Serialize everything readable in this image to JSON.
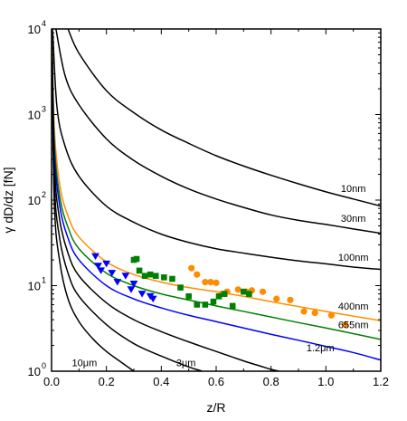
{
  "chart_data": {
    "type": "scatter",
    "xlabel": "z/R",
    "ylabel": "γ dD/dz [fN]",
    "xlim": [
      0,
      1.2
    ],
    "ylim": [
      1,
      10000
    ],
    "yscale": "log",
    "x_ticks": [
      "0.0",
      "0.2",
      "0.4",
      "0.6",
      "0.8",
      "1.0",
      "1.2"
    ],
    "y_ticks": [
      {
        "base": "10",
        "exp": "0"
      },
      {
        "base": "10",
        "exp": "1"
      },
      {
        "base": "10",
        "exp": "2"
      },
      {
        "base": "10",
        "exp": "3"
      },
      {
        "base": "10",
        "exp": "4"
      }
    ],
    "grid": false,
    "curves": [
      {
        "label": "10nm",
        "color": "#000000",
        "points": [
          [
            0.06,
            10000
          ],
          [
            0.1,
            5200
          ],
          [
            0.2,
            1900
          ],
          [
            0.3,
            1050
          ],
          [
            0.4,
            660
          ],
          [
            0.5,
            460
          ],
          [
            0.6,
            330
          ],
          [
            0.7,
            250
          ],
          [
            0.8,
            195
          ],
          [
            0.9,
            155
          ],
          [
            1.0,
            125
          ],
          [
            1.1,
            103
          ],
          [
            1.2,
            85
          ]
        ]
      },
      {
        "label": "30nm",
        "color": "#000000",
        "points": [
          [
            0.016,
            10000
          ],
          [
            0.05,
            2800
          ],
          [
            0.1,
            1300
          ],
          [
            0.2,
            520
          ],
          [
            0.3,
            290
          ],
          [
            0.4,
            190
          ],
          [
            0.5,
            135
          ],
          [
            0.6,
            103
          ],
          [
            0.7,
            82
          ],
          [
            0.8,
            67
          ],
          [
            0.9,
            58
          ],
          [
            1.0,
            52
          ],
          [
            1.1,
            46
          ],
          [
            1.2,
            41
          ]
        ]
      },
      {
        "label": "100nm",
        "color": "#000000",
        "points": [
          [
            0.004,
            10000
          ],
          [
            0.02,
            1200
          ],
          [
            0.05,
            420
          ],
          [
            0.1,
            190
          ],
          [
            0.2,
            85
          ],
          [
            0.3,
            55
          ],
          [
            0.4,
            40
          ],
          [
            0.5,
            32
          ],
          [
            0.6,
            27
          ],
          [
            0.7,
            24
          ],
          [
            0.8,
            21.5
          ],
          [
            0.9,
            19.5
          ],
          [
            1.0,
            18
          ],
          [
            1.1,
            16.5
          ],
          [
            1.2,
            15.5
          ]
        ]
      },
      {
        "label": "400nm",
        "color": "#ff8c00",
        "points": [
          [
            0.002,
            10000
          ],
          [
            0.01,
            700
          ],
          [
            0.03,
            150
          ],
          [
            0.06,
            65
          ],
          [
            0.1,
            37
          ],
          [
            0.2,
            19
          ],
          [
            0.3,
            13.5
          ],
          [
            0.4,
            11
          ],
          [
            0.5,
            9.5
          ],
          [
            0.6,
            8.5
          ],
          [
            0.7,
            7.5
          ],
          [
            0.8,
            6.5
          ],
          [
            0.9,
            5.7
          ],
          [
            1.0,
            5
          ],
          [
            1.1,
            4.4
          ],
          [
            1.2,
            3.9
          ]
        ]
      },
      {
        "label": "655nm",
        "color": "#008000",
        "points": [
          [
            0.0015,
            10000
          ],
          [
            0.01,
            500
          ],
          [
            0.03,
            110
          ],
          [
            0.06,
            48
          ],
          [
            0.1,
            27
          ],
          [
            0.2,
            14
          ],
          [
            0.3,
            10
          ],
          [
            0.4,
            8
          ],
          [
            0.5,
            6.8
          ],
          [
            0.6,
            5.8
          ],
          [
            0.7,
            5
          ],
          [
            0.8,
            4.3
          ],
          [
            0.9,
            3.7
          ],
          [
            1.0,
            3.2
          ],
          [
            1.1,
            2.75
          ],
          [
            1.2,
            2.35
          ]
        ]
      },
      {
        "label": "",
        "color": "#0000ff",
        "points": [
          [
            0.001,
            10000
          ],
          [
            0.01,
            380
          ],
          [
            0.03,
            85
          ],
          [
            0.06,
            36
          ],
          [
            0.1,
            20
          ],
          [
            0.2,
            10
          ],
          [
            0.3,
            7
          ],
          [
            0.4,
            5.5
          ],
          [
            0.5,
            4.5
          ],
          [
            0.6,
            3.8
          ],
          [
            0.7,
            3.2
          ],
          [
            0.8,
            2.7
          ],
          [
            0.9,
            2.3
          ],
          [
            1.0,
            1.95
          ],
          [
            1.1,
            1.65
          ],
          [
            1.2,
            1.35
          ]
        ]
      },
      {
        "label": "1.2μm",
        "color": "#000000",
        "points": [
          [
            0.0008,
            10000
          ],
          [
            0.01,
            260
          ],
          [
            0.03,
            58
          ],
          [
            0.06,
            24
          ],
          [
            0.1,
            13
          ],
          [
            0.2,
            6.3
          ],
          [
            0.3,
            4
          ],
          [
            0.4,
            2.9
          ],
          [
            0.5,
            2.2
          ],
          [
            0.6,
            1.7
          ],
          [
            0.7,
            1.32
          ],
          [
            0.76,
            1.15
          ],
          [
            0.8,
            1.05
          ],
          [
            0.83,
            1
          ]
        ]
      },
      {
        "label": "3μm",
        "color": "#000000",
        "points": [
          [
            0.0005,
            10000
          ],
          [
            0.01,
            160
          ],
          [
            0.03,
            35
          ],
          [
            0.06,
            14
          ],
          [
            0.1,
            7.5
          ],
          [
            0.2,
            3.5
          ],
          [
            0.3,
            2.1
          ],
          [
            0.4,
            1.5
          ],
          [
            0.5,
            1.12
          ],
          [
            0.55,
            1
          ]
        ]
      },
      {
        "label": "10μm",
        "color": "#000000",
        "points": [
          [
            0.0003,
            10000
          ],
          [
            0.01,
            95
          ],
          [
            0.03,
            19
          ],
          [
            0.06,
            7
          ],
          [
            0.1,
            3.8
          ],
          [
            0.15,
            2.4
          ],
          [
            0.2,
            1.7
          ],
          [
            0.25,
            1.3
          ],
          [
            0.3,
            1
          ]
        ]
      }
    ],
    "series": [
      {
        "marker": "circle",
        "color": "#ff8c00",
        "points": [
          [
            0.51,
            16
          ],
          [
            0.53,
            13.5
          ],
          [
            0.56,
            11
          ],
          [
            0.58,
            11
          ],
          [
            0.6,
            10.8
          ],
          [
            0.62,
            8
          ],
          [
            0.64,
            8.5
          ],
          [
            0.68,
            9
          ],
          [
            0.71,
            8.5
          ],
          [
            0.73,
            8.8
          ],
          [
            0.77,
            8.5
          ],
          [
            0.82,
            7
          ],
          [
            0.87,
            6.8
          ],
          [
            0.92,
            5
          ],
          [
            0.96,
            4.8
          ],
          [
            1.02,
            4.5
          ],
          [
            1.07,
            3.5
          ]
        ]
      },
      {
        "marker": "square",
        "color": "#008000",
        "points": [
          [
            0.3,
            20
          ],
          [
            0.31,
            20.5
          ],
          [
            0.32,
            15
          ],
          [
            0.34,
            13
          ],
          [
            0.36,
            13.5
          ],
          [
            0.38,
            13
          ],
          [
            0.41,
            12.5
          ],
          [
            0.44,
            12
          ],
          [
            0.47,
            9.5
          ],
          [
            0.5,
            7.5
          ],
          [
            0.53,
            6
          ],
          [
            0.56,
            6
          ],
          [
            0.59,
            6.5
          ],
          [
            0.61,
            7.5
          ],
          [
            0.63,
            8
          ],
          [
            0.66,
            5.8
          ],
          [
            0.7,
            8.5
          ],
          [
            0.72,
            8
          ]
        ]
      },
      {
        "marker": "triangle-down",
        "color": "#0000ff",
        "points": [
          [
            0.16,
            22
          ],
          [
            0.17,
            17
          ],
          [
            0.18,
            15
          ],
          [
            0.2,
            18
          ],
          [
            0.22,
            14
          ],
          [
            0.24,
            11
          ],
          [
            0.27,
            13
          ],
          [
            0.29,
            9
          ],
          [
            0.3,
            10.5
          ],
          [
            0.33,
            8
          ],
          [
            0.36,
            7.5
          ],
          [
            0.37,
            7
          ]
        ]
      }
    ]
  }
}
